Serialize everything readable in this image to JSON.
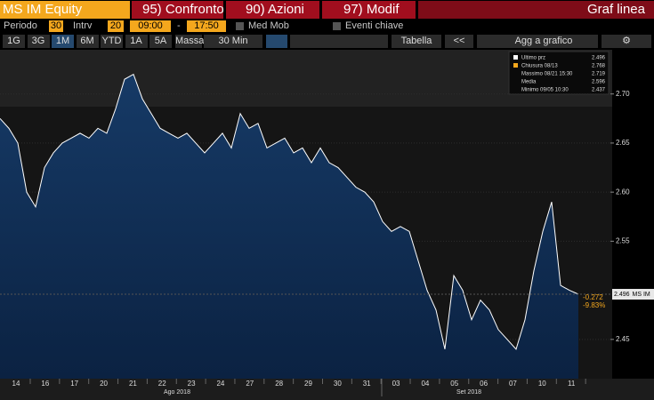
{
  "toolbar": {
    "security": "MS IM Equity",
    "buttons": [
      "95) Confronto",
      "90) Azioni",
      "97) Modif"
    ],
    "mode": "Graf linea"
  },
  "settings": {
    "period_label": "Periodo",
    "period": "30",
    "interval_label": "Intrv",
    "interval": "20",
    "start": "09:00",
    "separator": "-",
    "end": "17:50",
    "moving_avg": "Med Mob",
    "events": "Eventi chiave"
  },
  "controls": {
    "ranges": [
      "1G",
      "3G",
      "1M",
      "6M",
      "YTD",
      "1A",
      "5A"
    ],
    "volume": "Massa",
    "bar_size": "30 Min",
    "table": "Tabella",
    "back": "<<",
    "add": "Agg a grafico"
  },
  "chart_data": {
    "type": "line",
    "series": [
      {
        "name": "MS IM",
        "color": "#ffffff",
        "values": [
          2.675,
          2.665,
          2.65,
          2.6,
          2.585,
          2.625,
          2.64,
          2.65,
          2.655,
          2.66,
          2.655,
          2.665,
          2.66,
          2.685,
          2.715,
          2.72,
          2.695,
          2.68,
          2.665,
          2.66,
          2.655,
          2.66,
          2.65,
          2.64,
          2.65,
          2.66,
          2.645,
          2.68,
          2.665,
          2.67,
          2.645,
          2.65,
          2.655,
          2.64,
          2.645,
          2.63,
          2.645,
          2.63,
          2.625,
          2.615,
          2.605,
          2.6,
          2.59,
          2.57,
          2.56,
          2.565,
          2.56,
          2.53,
          2.5,
          2.48,
          2.44,
          2.515,
          2.5,
          2.47,
          2.49,
          2.48,
          2.46,
          2.45,
          2.44,
          2.47,
          2.52,
          2.56,
          2.59,
          2.505,
          2.5,
          2.496
        ]
      }
    ],
    "ylim": [
      2.41,
      2.745
    ],
    "yticks": [
      2.45,
      2.55,
      {
        "value": 2.6,
        "label": "2.60"
      },
      2.65,
      {
        "value": 2.7,
        "label": "2.70"
      }
    ],
    "day_labels": [
      "14",
      "16",
      "17",
      "20",
      "21",
      "22",
      "23",
      "24",
      "27",
      "28",
      "29",
      "30",
      "31",
      "03",
      "04",
      "05",
      "06",
      "07",
      "10",
      "11"
    ],
    "month_labels": [
      "Ago 2018",
      "Set 2018"
    ],
    "legend": [
      {
        "label": "Ultimo prz",
        "value": 2.496
      },
      {
        "label": "Chiusura 08/13",
        "value": 2.768
      },
      {
        "label": "Massimo 08/21 15:30",
        "value": 2.719
      },
      {
        "label": "Media",
        "value": 2.596
      },
      {
        "label": "Minimo 09/05 10:30",
        "value": 2.437
      }
    ],
    "last_price": 2.496,
    "change": -0.272,
    "change_pct": {
      "value": -9.83,
      "label": "-9.83%"
    }
  }
}
